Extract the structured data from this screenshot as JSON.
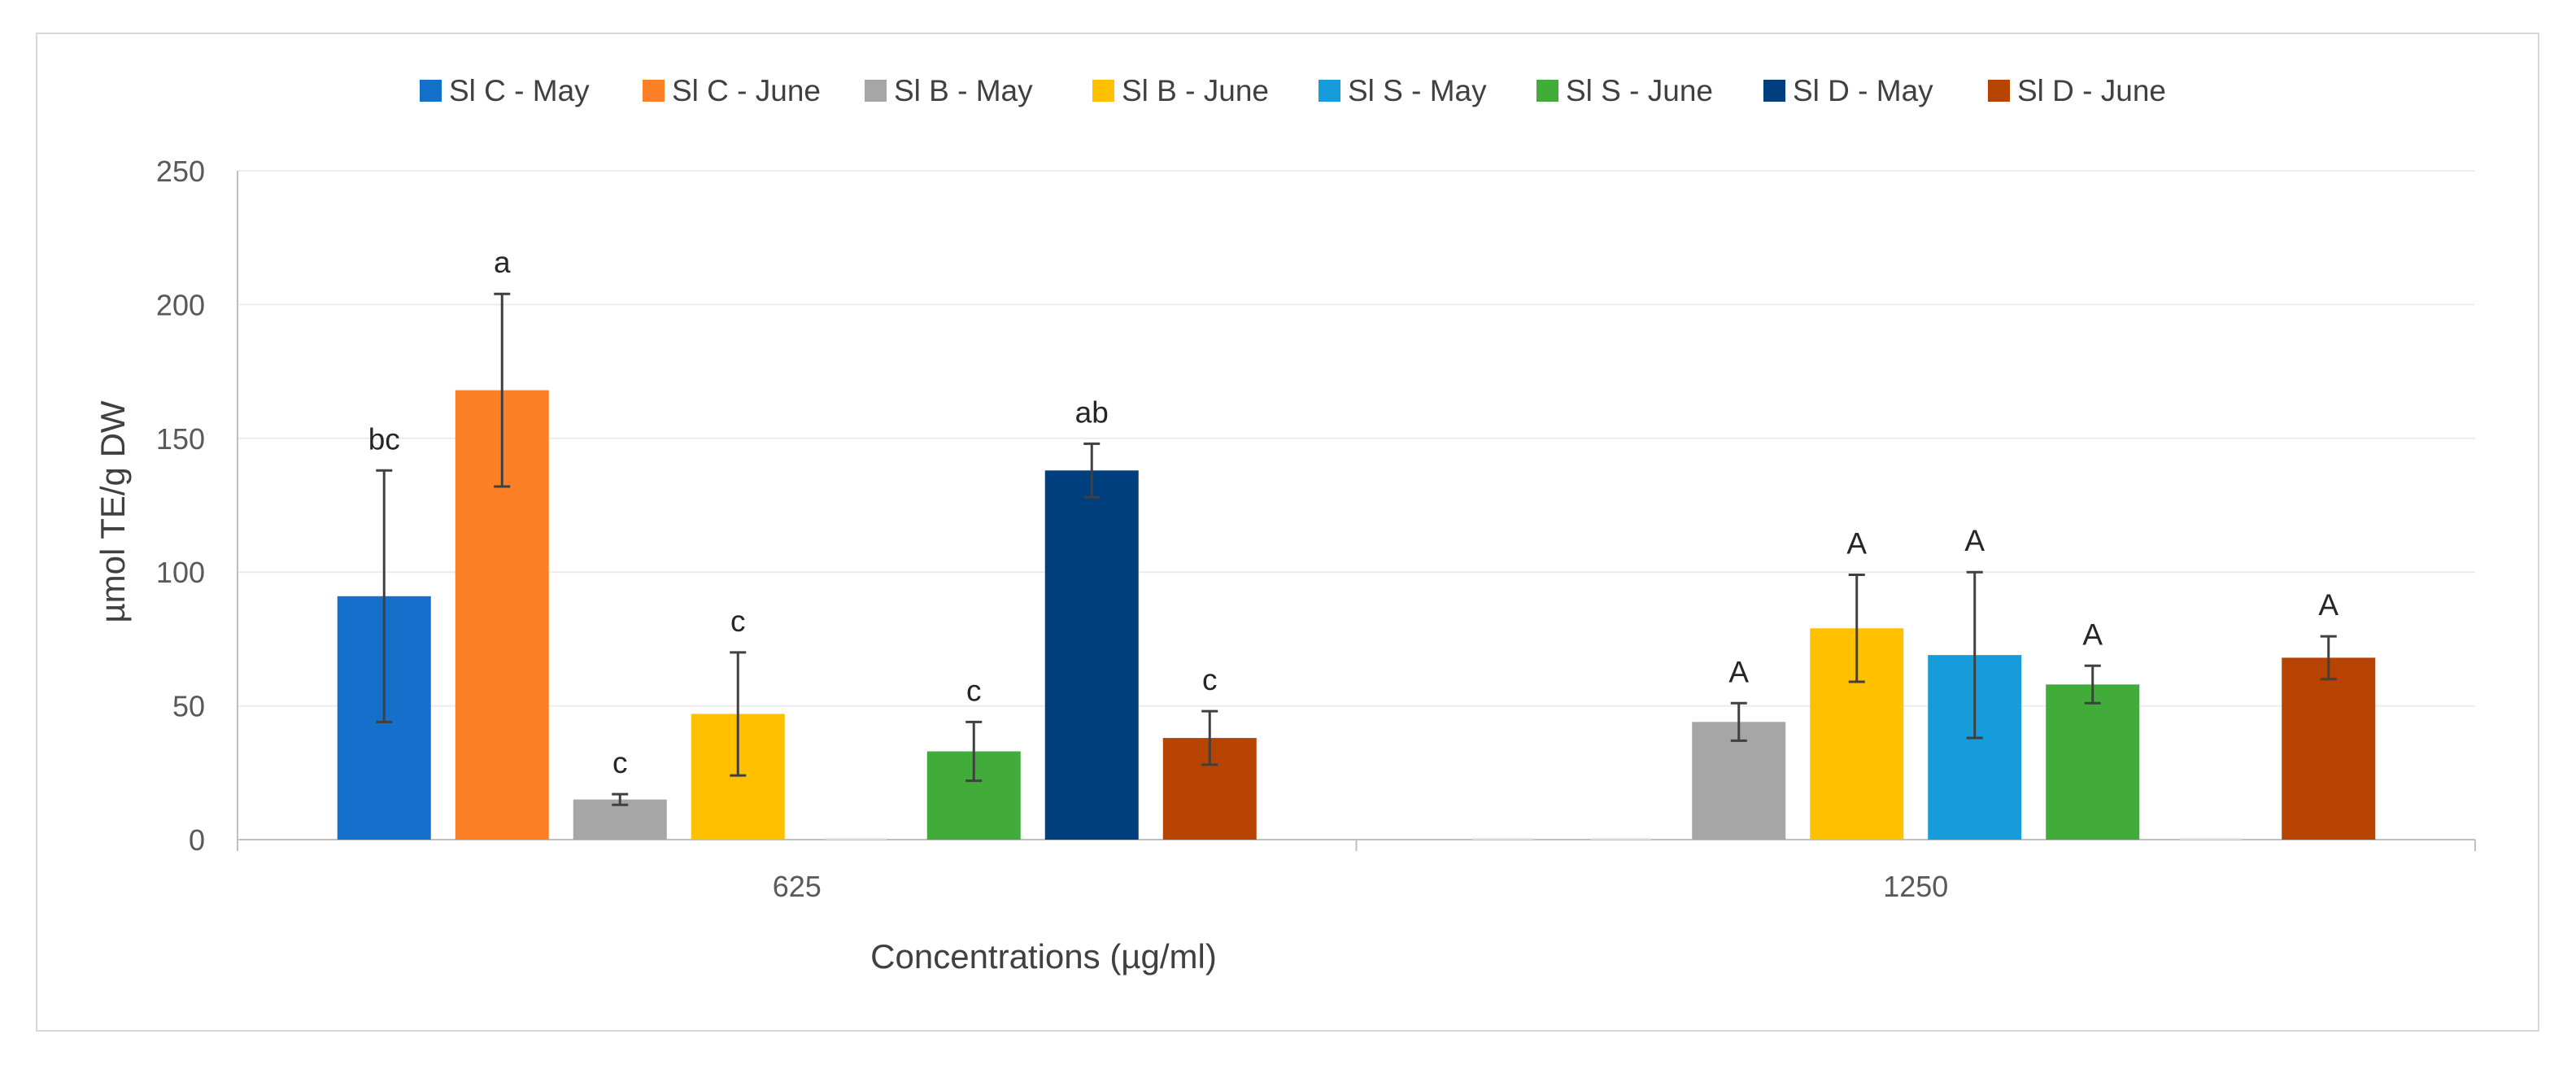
{
  "chart_data": {
    "type": "bar",
    "title": "",
    "xlabel": "Concentrations (µg/ml)",
    "ylabel": "µmol TE/g DW",
    "ylim": [
      0,
      250
    ],
    "yticks": [
      0,
      50,
      100,
      150,
      200,
      250
    ],
    "grid": true,
    "legend_position": "top",
    "categories": [
      "625",
      "1250"
    ],
    "series": [
      {
        "name": "Sl C - May",
        "color": "#1570cc",
        "values": [
          91,
          null
        ],
        "errors": [
          47,
          null
        ],
        "labels": [
          "bc",
          null
        ]
      },
      {
        "name": "Sl C - June",
        "color": "#fd7f26",
        "values": [
          168,
          null
        ],
        "errors": [
          36,
          null
        ],
        "labels": [
          "a",
          null
        ]
      },
      {
        "name": "Sl B - May",
        "color": "#a6a6a6",
        "values": [
          15,
          44
        ],
        "errors": [
          2,
          7
        ],
        "labels": [
          "c",
          "A"
        ]
      },
      {
        "name": "Sl B - June",
        "color": "#ffc000",
        "values": [
          47,
          79
        ],
        "errors": [
          23,
          20
        ],
        "labels": [
          "c",
          "A"
        ]
      },
      {
        "name": "Sl S - May",
        "color": "#179cdb",
        "values": [
          null,
          69
        ],
        "errors": [
          null,
          31
        ],
        "labels": [
          null,
          "A"
        ]
      },
      {
        "name": "Sl S - June",
        "color": "#41ac3a",
        "values": [
          33,
          58
        ],
        "errors": [
          11,
          7
        ],
        "labels": [
          "c",
          "A"
        ]
      },
      {
        "name": "Sl D - May",
        "color": "#003f7d",
        "values": [
          138,
          null
        ],
        "errors": [
          10,
          null
        ],
        "labels": [
          "ab",
          null
        ]
      },
      {
        "name": "Sl D - June",
        "color": "#b64300",
        "values": [
          38,
          68
        ],
        "errors": [
          10,
          8
        ],
        "labels": [
          "c",
          "A"
        ]
      }
    ]
  }
}
